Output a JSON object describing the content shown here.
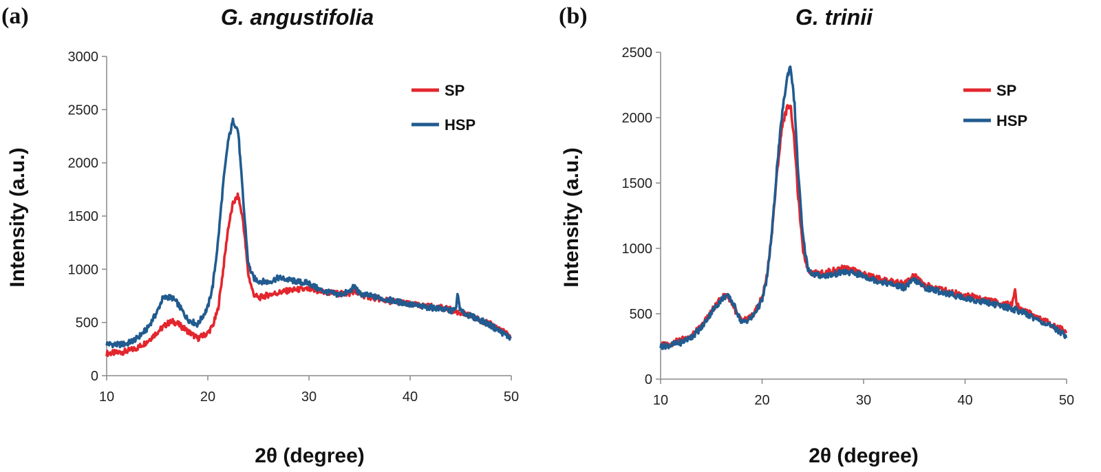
{
  "chart_data": [
    {
      "panel_label": "(a)",
      "type": "line",
      "title": "G. angustifolia",
      "xlabel": "2θ (degree)",
      "ylabel": "Intensity (a.u.)",
      "xlim": [
        10,
        50
      ],
      "ylim": [
        0,
        3000
      ],
      "xticks": [
        "10",
        "20",
        "30",
        "40",
        "50"
      ],
      "yticks": [
        "0",
        "500",
        "1000",
        "1500",
        "2000",
        "2500",
        "3000"
      ],
      "legend": [
        "SP",
        "HSP"
      ],
      "colors": {
        "SP": "#e3262d",
        "HSP": "#215b8f"
      },
      "series": [
        {
          "name": "SP",
          "x": [
            10,
            11,
            12,
            13,
            14,
            15,
            16,
            16.5,
            17,
            18,
            19,
            20,
            20.5,
            21,
            21.5,
            22,
            22.5,
            23,
            23.5,
            24,
            24.5,
            25,
            26,
            27,
            28,
            29,
            30,
            31,
            32,
            33,
            34,
            34.5,
            35,
            36,
            37,
            38,
            39,
            40,
            41,
            42,
            43,
            44,
            44.5,
            45,
            46,
            47,
            48,
            49,
            50
          ],
          "y": [
            210,
            215,
            230,
            260,
            320,
            410,
            490,
            510,
            490,
            420,
            350,
            400,
            470,
            620,
            980,
            1380,
            1620,
            1690,
            1450,
            950,
            770,
            730,
            760,
            780,
            800,
            810,
            810,
            790,
            780,
            770,
            770,
            800,
            760,
            740,
            720,
            700,
            690,
            670,
            660,
            650,
            640,
            620,
            600,
            590,
            560,
            520,
            480,
            430,
            360
          ]
        },
        {
          "name": "HSP",
          "x": [
            10,
            11,
            12,
            13,
            14,
            15,
            15.5,
            16,
            16.5,
            17,
            18,
            19,
            20,
            20.5,
            21,
            21.5,
            22,
            22.5,
            23,
            23.5,
            24,
            24.5,
            25,
            26,
            27,
            28,
            29,
            30,
            31,
            32,
            33,
            34,
            34.5,
            35,
            36,
            37,
            38,
            39,
            40,
            41,
            42,
            43,
            44,
            44.5,
            44.7,
            45,
            46,
            47,
            48,
            49,
            50
          ],
          "y": [
            300,
            290,
            300,
            350,
            440,
            600,
            720,
            740,
            730,
            680,
            530,
            480,
            640,
            850,
            1250,
            1780,
            2200,
            2400,
            2300,
            1650,
            1050,
            920,
            890,
            880,
            920,
            900,
            880,
            870,
            810,
            780,
            760,
            790,
            840,
            770,
            750,
            730,
            710,
            690,
            670,
            650,
            640,
            630,
            610,
            620,
            760,
            600,
            560,
            520,
            470,
            410,
            350
          ]
        }
      ]
    },
    {
      "panel_label": "(b)",
      "type": "line",
      "title": "G. trinii",
      "xlabel": "2θ (degree)",
      "ylabel": "Intensity (a.u.)",
      "xlim": [
        10,
        50
      ],
      "ylim": [
        0,
        2500
      ],
      "xticks": [
        "10",
        "20",
        "30",
        "40",
        "50"
      ],
      "yticks": [
        "0",
        "500",
        "1000",
        "1500",
        "2000",
        "2500"
      ],
      "legend": [
        "SP",
        "HSP"
      ],
      "colors": {
        "SP": "#e3262d",
        "HSP": "#215b8f"
      },
      "series": [
        {
          "name": "SP",
          "x": [
            10,
            11,
            12,
            13,
            14,
            15,
            16,
            16.5,
            17,
            17.5,
            18,
            19,
            20,
            20.5,
            21,
            21.5,
            22,
            22.5,
            22.8,
            23.2,
            23.5,
            24,
            24.5,
            25,
            26,
            27,
            28,
            29,
            30,
            31,
            32,
            33,
            34,
            35,
            36,
            37,
            38,
            39,
            40,
            41,
            42,
            43,
            44,
            44.7,
            44.9,
            45.1,
            46,
            47,
            48,
            49,
            50
          ],
          "y": [
            260,
            270,
            300,
            330,
            400,
            520,
            620,
            650,
            590,
            500,
            440,
            480,
            620,
            800,
            1150,
            1600,
            1950,
            2080,
            2100,
            1800,
            1450,
            1000,
            840,
            810,
            810,
            830,
            850,
            830,
            800,
            780,
            760,
            740,
            730,
            790,
            720,
            700,
            680,
            660,
            640,
            630,
            610,
            590,
            570,
            580,
            700,
            560,
            520,
            480,
            440,
            400,
            360
          ]
        },
        {
          "name": "HSP",
          "x": [
            10,
            11,
            12,
            13,
            14,
            15,
            16,
            16.5,
            17,
            17.5,
            18,
            19,
            20,
            20.5,
            21,
            21.5,
            22,
            22.5,
            22.8,
            23.2,
            23.5,
            24,
            24.5,
            25,
            26,
            27,
            28,
            29,
            30,
            31,
            32,
            33,
            34,
            35,
            36,
            37,
            38,
            39,
            40,
            41,
            42,
            43,
            44,
            45,
            46,
            47,
            48,
            49,
            50
          ],
          "y": [
            250,
            260,
            280,
            320,
            390,
            510,
            610,
            640,
            600,
            520,
            430,
            470,
            600,
            780,
            1150,
            1650,
            2050,
            2320,
            2400,
            2100,
            1650,
            1100,
            850,
            800,
            790,
            800,
            820,
            810,
            790,
            760,
            740,
            720,
            700,
            760,
            700,
            680,
            660,
            640,
            620,
            600,
            590,
            570,
            550,
            530,
            500,
            460,
            420,
            380,
            330
          ]
        }
      ]
    }
  ]
}
